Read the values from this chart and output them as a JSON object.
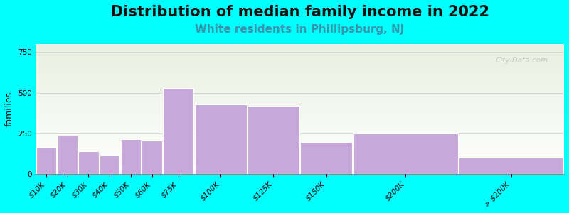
{
  "title": "Distribution of median family income in 2022",
  "subtitle": "White residents in Phillipsburg, NJ",
  "ylabel": "families",
  "bar_lefts": [
    0,
    10,
    20,
    30,
    40,
    50,
    60,
    75,
    100,
    125,
    150,
    200
  ],
  "bar_widths": [
    10,
    10,
    10,
    10,
    10,
    10,
    15,
    25,
    25,
    25,
    50,
    50
  ],
  "values": [
    165,
    235,
    140,
    115,
    215,
    205,
    530,
    430,
    420,
    195,
    250,
    100
  ],
  "tick_positions": [
    5,
    15,
    25,
    35,
    45,
    55,
    67.5,
    87.5,
    112.5,
    137.5,
    175,
    225
  ],
  "tick_labels": [
    "$10K",
    "$20K",
    "$30K",
    "$40K",
    "$50K",
    "$60K",
    "$75K",
    "$100K",
    "$125K",
    "$150K",
    "$200K",
    "> $200K"
  ],
  "bar_color": "#c8a8d8",
  "bar_edge_color": "#ffffff",
  "background_color": "#00FFFF",
  "plot_bg_top": "#e8f0e0",
  "plot_bg_bottom": "#ffffff",
  "title_fontsize": 15,
  "subtitle_fontsize": 11,
  "subtitle_color": "#3399aa",
  "ylabel_fontsize": 9,
  "tick_fontsize": 7.5,
  "ylim": [
    0,
    800
  ],
  "xlim": [
    0,
    250
  ],
  "yticks": [
    0,
    250,
    500,
    750
  ],
  "watermark": "City-Data.com"
}
